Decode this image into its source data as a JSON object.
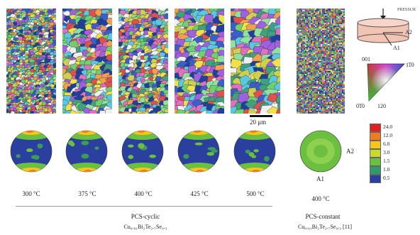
{
  "figure": {
    "scale_bar": "20 μm",
    "temperatures": [
      "300 °C",
      "375 °C",
      "400 °C",
      "425 °C",
      "500 °C"
    ],
    "constant_temperature": "400 °C",
    "group_cyclic": {
      "title": "PCS-cyclic",
      "formula": "Cu₀.₀₁Bi₂Te₂.₇Se₀.₃"
    },
    "group_constant": {
      "title": "PCS-constant",
      "formula": "Cu₀.₀₁Bi₂Te₂.₇Se₀.₃ [11]"
    },
    "sample_schematic": {
      "pressing_label": "PRESSURE",
      "axis_a1": "A1",
      "axis_a2": "A2"
    },
    "ipf_triangle": {
      "corner_001": "001",
      "corner_1-10": "1͞10",
      "corner_0-10": "0͞10",
      "corner_120": "120"
    },
    "pole_figure_axes": {
      "a1": "A1",
      "a2": "A2"
    },
    "color_legend": {
      "values": [
        "24.0",
        "12.0",
        "6.0",
        "3.0",
        "1.5",
        "1.0",
        "0.5"
      ],
      "colors": [
        "#e02020",
        "#f07a20",
        "#f4c61e",
        "#c9d92a",
        "#6cc040",
        "#2f9a6a",
        "#2b3f9e"
      ]
    }
  }
}
